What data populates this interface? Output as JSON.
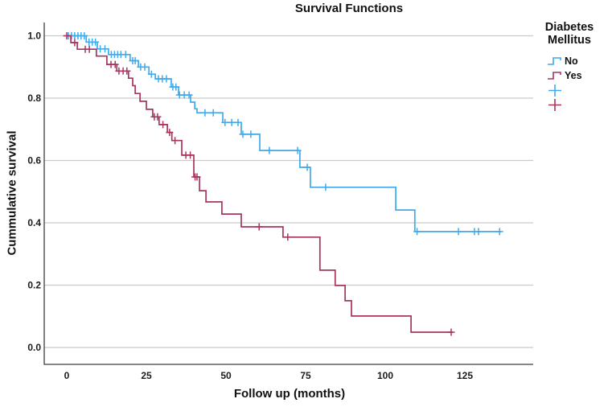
{
  "chart_data": {
    "type": "line",
    "subtype": "kaplan-meier-step-function",
    "title": "Survival Functions",
    "xlabel": "Follow up (months)",
    "ylabel": "Cummulative survival",
    "xticks": [
      "0",
      "25",
      "50",
      "75",
      "100",
      "125"
    ],
    "yticks": [
      "0.0",
      "0.2",
      "0.4",
      "0.6",
      "0.8",
      "1.0"
    ],
    "xlim": [
      0,
      146
    ],
    "ylim": [
      0.0,
      1.0
    ],
    "grid": "horizontal",
    "grid_color": "#cacaca",
    "axis_color": "#3d3d3d",
    "legend_position": "right",
    "series": [
      {
        "name": "No",
        "color": "#41a9ec",
        "steps": [
          [
            0,
            1.0
          ],
          [
            6.1,
            0.98
          ],
          [
            9.6,
            0.958
          ],
          [
            13.1,
            0.94
          ],
          [
            19.9,
            0.92
          ],
          [
            22.5,
            0.9
          ],
          [
            25.8,
            0.877
          ],
          [
            27.8,
            0.862
          ],
          [
            32.8,
            0.836
          ],
          [
            35.1,
            0.81
          ],
          [
            38.9,
            0.787
          ],
          [
            40.2,
            0.766
          ],
          [
            40.9,
            0.753
          ],
          [
            49,
            0.722
          ],
          [
            54.8,
            0.684
          ],
          [
            60.6,
            0.632
          ],
          [
            73.2,
            0.578
          ],
          [
            76.5,
            0.514
          ],
          [
            103.3,
            0.441
          ],
          [
            109.3,
            0.372
          ]
        ],
        "end_time": 136.4,
        "censors": [
          [
            0.5,
            1.0
          ],
          [
            1.5,
            1.0
          ],
          [
            2.5,
            1.0
          ],
          [
            3.5,
            1.0
          ],
          [
            4.5,
            1.0
          ],
          [
            5.5,
            1.0
          ],
          [
            7,
            0.98
          ],
          [
            8,
            0.98
          ],
          [
            9,
            0.98
          ],
          [
            10.5,
            0.958
          ],
          [
            12,
            0.958
          ],
          [
            14,
            0.94
          ],
          [
            15,
            0.94
          ],
          [
            16,
            0.94
          ],
          [
            17,
            0.94
          ],
          [
            18.5,
            0.94
          ],
          [
            20.7,
            0.92
          ],
          [
            21.5,
            0.92
          ],
          [
            23.2,
            0.9
          ],
          [
            24.5,
            0.9
          ],
          [
            26.6,
            0.877
          ],
          [
            28.8,
            0.862
          ],
          [
            30,
            0.862
          ],
          [
            31.3,
            0.862
          ],
          [
            33.3,
            0.836
          ],
          [
            34.3,
            0.836
          ],
          [
            35.4,
            0.81
          ],
          [
            36.9,
            0.81
          ],
          [
            38.4,
            0.81
          ],
          [
            43.4,
            0.753
          ],
          [
            46,
            0.753
          ],
          [
            49.7,
            0.722
          ],
          [
            51.8,
            0.722
          ],
          [
            53.8,
            0.722
          ],
          [
            55.3,
            0.684
          ],
          [
            57.8,
            0.684
          ],
          [
            63.6,
            0.632
          ],
          [
            72.5,
            0.632
          ],
          [
            75.5,
            0.578
          ],
          [
            81.3,
            0.514
          ],
          [
            110,
            0.372
          ],
          [
            123,
            0.372
          ],
          [
            128,
            0.372
          ],
          [
            129.3,
            0.372
          ],
          [
            135.9,
            0.372
          ]
        ]
      },
      {
        "name": "Yes",
        "color": "#a6355f",
        "steps": [
          [
            0,
            1.0
          ],
          [
            1.3,
            0.978
          ],
          [
            3.3,
            0.957
          ],
          [
            9.3,
            0.935
          ],
          [
            12.6,
            0.908
          ],
          [
            15.7,
            0.887
          ],
          [
            19.4,
            0.864
          ],
          [
            20.7,
            0.84
          ],
          [
            21.5,
            0.815
          ],
          [
            23,
            0.79
          ],
          [
            25,
            0.764
          ],
          [
            27,
            0.74
          ],
          [
            29,
            0.715
          ],
          [
            31.6,
            0.69
          ],
          [
            33,
            0.664
          ],
          [
            36.1,
            0.617
          ],
          [
            39.9,
            0.547
          ],
          [
            41.7,
            0.503
          ],
          [
            43.7,
            0.467
          ],
          [
            48.7,
            0.428
          ],
          [
            54.8,
            0.387
          ],
          [
            67.9,
            0.354
          ],
          [
            79.5,
            0.248
          ],
          [
            84.3,
            0.199
          ],
          [
            87.4,
            0.15
          ],
          [
            89.4,
            0.101
          ],
          [
            108.1,
            0.049
          ]
        ],
        "end_time": 121.2,
        "censors": [
          [
            0,
            1.0
          ],
          [
            2.5,
            0.978
          ],
          [
            5.8,
            0.957
          ],
          [
            7.1,
            0.957
          ],
          [
            13.9,
            0.908
          ],
          [
            15.2,
            0.908
          ],
          [
            16.4,
            0.887
          ],
          [
            17.7,
            0.887
          ],
          [
            18.9,
            0.887
          ],
          [
            27.5,
            0.74
          ],
          [
            28.5,
            0.74
          ],
          [
            30.2,
            0.715
          ],
          [
            32.3,
            0.69
          ],
          [
            34,
            0.664
          ],
          [
            37.4,
            0.617
          ],
          [
            38.8,
            0.617
          ],
          [
            40.3,
            0.547
          ],
          [
            40.9,
            0.547
          ],
          [
            60.4,
            0.387
          ],
          [
            69.4,
            0.354
          ],
          [
            120.7,
            0.049
          ]
        ]
      }
    ]
  },
  "legend": {
    "title": "Diabetes Mellitus",
    "items": [
      {
        "label": "No",
        "symbol": "step-line",
        "series": 0
      },
      {
        "label": "Yes",
        "symbol": "step-line",
        "series": 1
      },
      {
        "label": "",
        "symbol": "censor-plus",
        "series": 0
      },
      {
        "label": "",
        "symbol": "censor-plus",
        "series": 1
      }
    ]
  }
}
